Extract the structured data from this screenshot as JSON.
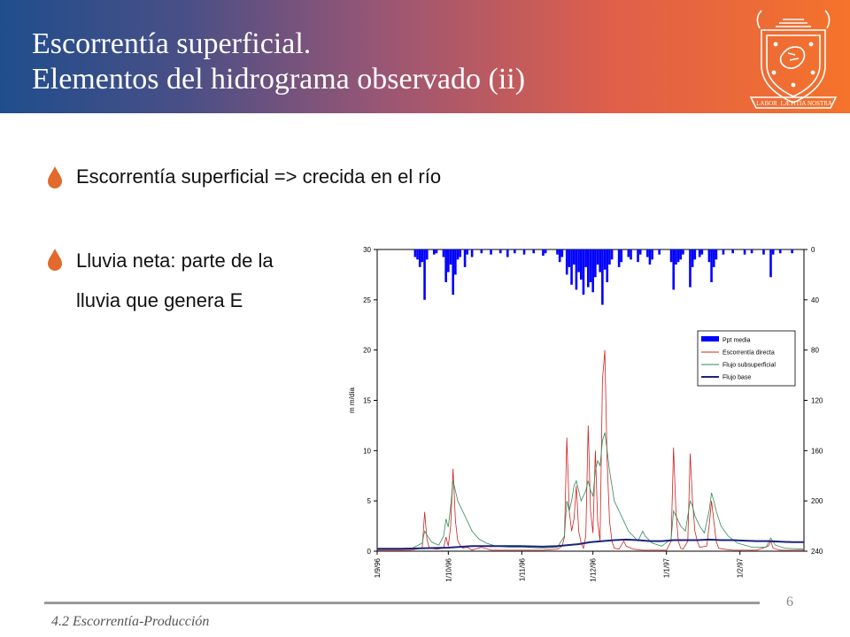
{
  "slide": {
    "title_line1": "Escorrentía superficial.",
    "title_line2": "Elementos del hidrograma observado (ii)",
    "crest_motto": [
      "LABOR",
      "LÆTITIA",
      "NOSTRA"
    ],
    "bullets": [
      {
        "lines": [
          "Escorrentía superficial => crecida en el río"
        ]
      },
      {
        "lines": [
          "Lluvia neta: parte de la",
          "lluvia que genera E"
        ]
      }
    ],
    "footer_text": "4.2 Escorrentía-Producción",
    "page_number": "6",
    "colors": {
      "header_left": "#1f4e8c",
      "header_right": "#f5732a",
      "bullet_mark": "#e26a2c"
    }
  },
  "chart_data": {
    "type": "line",
    "title": "",
    "ylabel": "m m/día",
    "ylabel_right": "",
    "ylim": [
      0,
      30
    ],
    "y_ticks": [
      0,
      5,
      10,
      15,
      20,
      25,
      30
    ],
    "ylim_right": [
      0,
      240
    ],
    "y_ticks_right": [
      0,
      40,
      80,
      120,
      160,
      200,
      240
    ],
    "right_axis_inverted": true,
    "x_labels": [
      "1/9/96",
      "1/10/96",
      "1/11/96",
      "1/12/96",
      "1/1/97",
      "1/2/97"
    ],
    "x_label_days": [
      0,
      30,
      61,
      91,
      122,
      153
    ],
    "x_days_total": 180,
    "legend_position": "right",
    "series": [
      {
        "name": "Ppt media",
        "kind": "bar",
        "axis": "right",
        "color": "#0000ff",
        "points": [
          [
            16,
            6
          ],
          [
            17,
            8
          ],
          [
            18,
            14
          ],
          [
            19,
            10
          ],
          [
            20,
            40
          ],
          [
            21,
            8
          ],
          [
            24,
            4
          ],
          [
            25,
            3
          ],
          [
            28,
            6
          ],
          [
            29,
            26
          ],
          [
            30,
            18
          ],
          [
            31,
            12
          ],
          [
            32,
            36
          ],
          [
            33,
            20
          ],
          [
            34,
            8
          ],
          [
            35,
            6
          ],
          [
            37,
            14
          ],
          [
            38,
            4
          ],
          [
            40,
            6
          ],
          [
            44,
            3
          ],
          [
            48,
            4
          ],
          [
            52,
            3
          ],
          [
            55,
            6
          ],
          [
            58,
            3
          ],
          [
            62,
            4
          ],
          [
            66,
            3
          ],
          [
            70,
            5
          ],
          [
            71,
            3
          ],
          [
            76,
            4
          ],
          [
            77,
            10
          ],
          [
            78,
            6
          ],
          [
            80,
            20
          ],
          [
            81,
            14
          ],
          [
            82,
            28
          ],
          [
            83,
            12
          ],
          [
            84,
            32
          ],
          [
            85,
            18
          ],
          [
            86,
            24
          ],
          [
            87,
            36
          ],
          [
            88,
            14
          ],
          [
            89,
            30
          ],
          [
            90,
            26
          ],
          [
            91,
            34
          ],
          [
            92,
            22
          ],
          [
            93,
            12
          ],
          [
            94,
            18
          ],
          [
            95,
            44
          ],
          [
            96,
            16
          ],
          [
            97,
            26
          ],
          [
            98,
            12
          ],
          [
            99,
            8
          ],
          [
            102,
            14
          ],
          [
            103,
            10
          ],
          [
            106,
            6
          ],
          [
            107,
            8
          ],
          [
            110,
            10
          ],
          [
            111,
            4
          ],
          [
            114,
            6
          ],
          [
            115,
            12
          ],
          [
            116,
            8
          ],
          [
            119,
            4
          ],
          [
            124,
            10
          ],
          [
            125,
            32
          ],
          [
            126,
            12
          ],
          [
            127,
            10
          ],
          [
            128,
            8
          ],
          [
            129,
            4
          ],
          [
            132,
            30
          ],
          [
            133,
            14
          ],
          [
            134,
            8
          ],
          [
            136,
            6
          ],
          [
            137,
            4
          ],
          [
            140,
            10
          ],
          [
            141,
            26
          ],
          [
            142,
            14
          ],
          [
            143,
            8
          ],
          [
            146,
            4
          ],
          [
            150,
            3
          ],
          [
            155,
            4
          ],
          [
            158,
            3
          ],
          [
            163,
            4
          ],
          [
            166,
            22
          ],
          [
            167,
            4
          ],
          [
            170,
            3
          ],
          [
            175,
            3
          ]
        ]
      },
      {
        "name": "Escorrentía directa",
        "kind": "line",
        "axis": "left",
        "color": "#d12020",
        "points": [
          [
            0,
            0.1
          ],
          [
            14,
            0.1
          ],
          [
            19,
            0.3
          ],
          [
            20,
            3.9
          ],
          [
            21,
            1.2
          ],
          [
            22,
            0.3
          ],
          [
            25,
            0.2
          ],
          [
            28,
            0.3
          ],
          [
            29,
            1.4
          ],
          [
            30,
            0.5
          ],
          [
            31,
            2.5
          ],
          [
            32,
            8.2
          ],
          [
            33,
            3.0
          ],
          [
            34,
            1.0
          ],
          [
            35,
            0.6
          ],
          [
            36,
            0.3
          ],
          [
            38,
            0.4
          ],
          [
            40,
            0.1
          ],
          [
            44,
            0.4
          ],
          [
            48,
            0.1
          ],
          [
            56,
            0.1
          ],
          [
            60,
            0.1
          ],
          [
            70,
            0.1
          ],
          [
            76,
            0.2
          ],
          [
            78,
            0.5
          ],
          [
            79,
            1.4
          ],
          [
            80,
            11.3
          ],
          [
            81,
            4.0
          ],
          [
            82,
            2.0
          ],
          [
            83,
            3.2
          ],
          [
            84,
            6.5
          ],
          [
            85,
            2.0
          ],
          [
            86,
            0.8
          ],
          [
            87,
            0.3
          ],
          [
            88,
            1.5
          ],
          [
            89,
            12.5
          ],
          [
            90,
            4.0
          ],
          [
            91,
            1.8
          ],
          [
            92,
            10.0
          ],
          [
            93,
            3.0
          ],
          [
            94,
            1.0
          ],
          [
            95,
            17.0
          ],
          [
            96,
            20.0
          ],
          [
            97,
            9.0
          ],
          [
            98,
            3.0
          ],
          [
            99,
            1.0
          ],
          [
            100,
            0.3
          ],
          [
            102,
            0.2
          ],
          [
            104,
            1.0
          ],
          [
            105,
            0.5
          ],
          [
            108,
            0.2
          ],
          [
            112,
            0.1
          ],
          [
            118,
            0.1
          ],
          [
            122,
            0.1
          ],
          [
            124,
            1.0
          ],
          [
            125,
            10.3
          ],
          [
            126,
            4.0
          ],
          [
            127,
            1.0
          ],
          [
            128,
            0.3
          ],
          [
            129,
            0.2
          ],
          [
            131,
            1.0
          ],
          [
            132,
            9.7
          ],
          [
            133,
            5.0
          ],
          [
            134,
            2.0
          ],
          [
            135,
            1.0
          ],
          [
            136,
            0.4
          ],
          [
            139,
            0.5
          ],
          [
            140,
            2.5
          ],
          [
            141,
            5.0
          ],
          [
            142,
            3.0
          ],
          [
            143,
            1.0
          ],
          [
            144,
            0.3
          ],
          [
            146,
            0.2
          ],
          [
            150,
            0.1
          ],
          [
            160,
            0.1
          ],
          [
            165,
            0.5
          ],
          [
            166,
            1.0
          ],
          [
            167,
            0.3
          ],
          [
            170,
            0.1
          ],
          [
            180,
            0.1
          ]
        ]
      },
      {
        "name": "Flujo subsuperficial",
        "kind": "line",
        "axis": "left",
        "color": "#2e8b57",
        "points": [
          [
            0,
            0.2
          ],
          [
            14,
            0.2
          ],
          [
            19,
            0.8
          ],
          [
            20,
            2.0
          ],
          [
            21,
            1.6
          ],
          [
            23,
            0.9
          ],
          [
            26,
            0.6
          ],
          [
            28,
            1.5
          ],
          [
            29,
            3.2
          ],
          [
            30,
            2.4
          ],
          [
            31,
            4.5
          ],
          [
            32,
            7.0
          ],
          [
            33,
            6.0
          ],
          [
            34,
            5.0
          ],
          [
            36,
            4.0
          ],
          [
            38,
            3.0
          ],
          [
            40,
            2.0
          ],
          [
            43,
            1.2
          ],
          [
            46,
            0.8
          ],
          [
            50,
            0.5
          ],
          [
            56,
            0.4
          ],
          [
            62,
            0.4
          ],
          [
            70,
            0.3
          ],
          [
            76,
            0.4
          ],
          [
            79,
            1.5
          ],
          [
            80,
            5.0
          ],
          [
            81,
            4.0
          ],
          [
            82,
            5.0
          ],
          [
            83,
            6.5
          ],
          [
            84,
            7.0
          ],
          [
            85,
            6.0
          ],
          [
            86,
            5.0
          ],
          [
            88,
            6.0
          ],
          [
            89,
            7.0
          ],
          [
            90,
            6.0
          ],
          [
            91,
            5.5
          ],
          [
            92,
            8.0
          ],
          [
            93,
            9.0
          ],
          [
            94,
            8.5
          ],
          [
            95,
            11.0
          ],
          [
            96,
            11.8
          ],
          [
            97,
            10.0
          ],
          [
            98,
            8.0
          ],
          [
            99,
            6.5
          ],
          [
            100,
            5.0
          ],
          [
            102,
            4.0
          ],
          [
            104,
            3.0
          ],
          [
            106,
            2.0
          ],
          [
            108,
            1.5
          ],
          [
            110,
            1.0
          ],
          [
            112,
            2.0
          ],
          [
            113,
            1.5
          ],
          [
            116,
            0.8
          ],
          [
            120,
            0.5
          ],
          [
            124,
            1.2
          ],
          [
            125,
            4.0
          ],
          [
            126,
            3.5
          ],
          [
            128,
            2.5
          ],
          [
            130,
            2.0
          ],
          [
            132,
            5.0
          ],
          [
            133,
            4.5
          ],
          [
            134,
            3.5
          ],
          [
            136,
            2.5
          ],
          [
            138,
            1.8
          ],
          [
            140,
            4.0
          ],
          [
            141,
            5.8
          ],
          [
            142,
            5.0
          ],
          [
            143,
            4.0
          ],
          [
            145,
            2.5
          ],
          [
            148,
            1.5
          ],
          [
            152,
            0.8
          ],
          [
            158,
            0.4
          ],
          [
            164,
            0.4
          ],
          [
            166,
            1.3
          ],
          [
            168,
            0.6
          ],
          [
            172,
            0.3
          ],
          [
            180,
            0.2
          ]
        ]
      },
      {
        "name": "Flujo base",
        "kind": "line",
        "axis": "left",
        "color": "#1a237e",
        "points": [
          [
            0,
            0.25
          ],
          [
            10,
            0.25
          ],
          [
            20,
            0.3
          ],
          [
            30,
            0.35
          ],
          [
            40,
            0.5
          ],
          [
            50,
            0.5
          ],
          [
            60,
            0.5
          ],
          [
            70,
            0.45
          ],
          [
            76,
            0.5
          ],
          [
            80,
            0.6
          ],
          [
            85,
            0.7
          ],
          [
            90,
            0.9
          ],
          [
            95,
            1.0
          ],
          [
            100,
            1.1
          ],
          [
            105,
            1.15
          ],
          [
            110,
            1.1
          ],
          [
            115,
            1.0
          ],
          [
            120,
            1.0
          ],
          [
            125,
            1.1
          ],
          [
            130,
            1.1
          ],
          [
            135,
            1.1
          ],
          [
            140,
            1.15
          ],
          [
            145,
            1.1
          ],
          [
            150,
            1.1
          ],
          [
            155,
            1.05
          ],
          [
            160,
            1.0
          ],
          [
            165,
            1.0
          ],
          [
            170,
            0.95
          ],
          [
            175,
            0.9
          ],
          [
            180,
            0.9
          ]
        ]
      }
    ]
  }
}
